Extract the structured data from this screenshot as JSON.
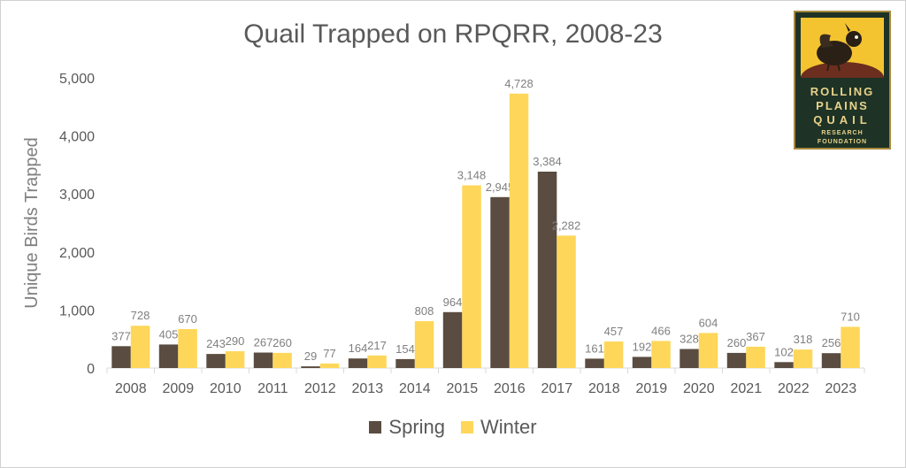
{
  "chart_data": {
    "type": "bar",
    "title": "Quail Trapped on RPQRR, 2008-23",
    "ylabel": "Unique Birds Trapped",
    "xlabel": "",
    "ylim": [
      0,
      5000
    ],
    "yticks": [
      "0",
      "1,000",
      "2,000",
      "3,000",
      "4,000",
      "5,000"
    ],
    "categories": [
      "2008",
      "2009",
      "2010",
      "2011",
      "2012",
      "2013",
      "2014",
      "2015",
      "2016",
      "2017",
      "2018",
      "2019",
      "2020",
      "2021",
      "2022",
      "2023"
    ],
    "series": [
      {
        "name": "Spring",
        "color": "#5a4c40",
        "values": [
          377,
          405,
          243,
          267,
          29,
          164,
          154,
          964,
          2945,
          3384,
          161,
          192,
          328,
          260,
          102,
          256
        ],
        "labels": [
          "377",
          "405",
          "243",
          "267",
          "29",
          "164",
          "154",
          "964",
          "2,945",
          "3,384",
          "161",
          "192",
          "328",
          "260",
          "102",
          "256"
        ]
      },
      {
        "name": "Winter",
        "color": "#fed75a",
        "values": [
          728,
          670,
          290,
          260,
          77,
          217,
          808,
          3148,
          4728,
          2282,
          457,
          466,
          604,
          367,
          318,
          710
        ],
        "labels": [
          "728",
          "670",
          "290",
          "260",
          "77",
          "217",
          "808",
          "3,148",
          "4,728",
          "2,282",
          "457",
          "466",
          "604",
          "367",
          "318",
          "710"
        ]
      }
    ],
    "grid": false,
    "legend_position": "bottom"
  },
  "logo": {
    "line1": "ROLLING",
    "line2": "PLAINS",
    "line3": "QUAIL",
    "line4": "RESEARCH",
    "line5": "FOUNDATION"
  }
}
